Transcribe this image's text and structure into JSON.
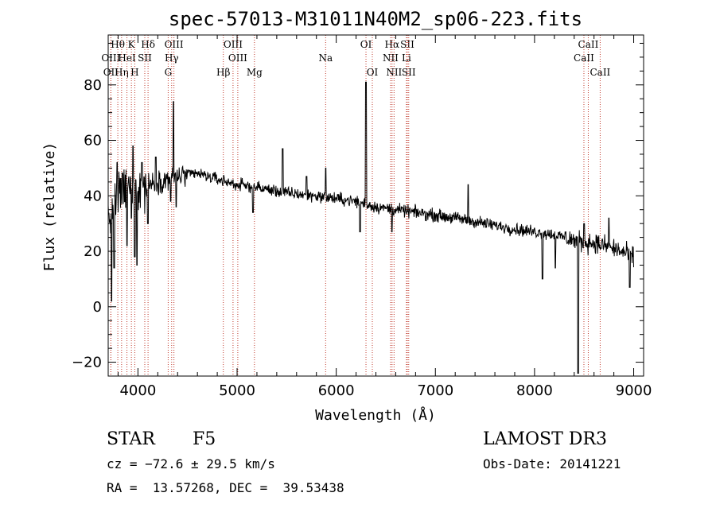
{
  "chart_data": {
    "type": "line",
    "title": "spec-57013-M31011N40M2_sp06-223.fits",
    "xlabel": "Wavelength (Å)",
    "ylabel": "Flux (relative)",
    "xlim": [
      3700,
      9100
    ],
    "ylim": [
      -25,
      98
    ],
    "x_ticks": [
      4000,
      5000,
      6000,
      7000,
      8000,
      9000
    ],
    "y_ticks": [
      -20,
      0,
      20,
      40,
      60,
      80
    ],
    "continuum": [
      [
        3700,
        32
      ],
      [
        3800,
        40
      ],
      [
        3900,
        42
      ],
      [
        4000,
        43
      ],
      [
        4100,
        44
      ],
      [
        4200,
        45
      ],
      [
        4300,
        46
      ],
      [
        4400,
        47
      ],
      [
        4600,
        48
      ],
      [
        4800,
        46
      ],
      [
        5000,
        44
      ],
      [
        5200,
        43
      ],
      [
        5500,
        41
      ],
      [
        5800,
        40
      ],
      [
        6000,
        39
      ],
      [
        6200,
        38
      ],
      [
        6400,
        36
      ],
      [
        6600,
        35
      ],
      [
        6800,
        34
      ],
      [
        7000,
        33
      ],
      [
        7200,
        32
      ],
      [
        7500,
        30
      ],
      [
        7800,
        28
      ],
      [
        8000,
        27
      ],
      [
        8200,
        26
      ],
      [
        8400,
        24
      ],
      [
        8600,
        23
      ],
      [
        8800,
        21
      ],
      [
        9000,
        18
      ]
    ],
    "features": [
      {
        "x": 3735,
        "y": 2
      },
      {
        "x": 3760,
        "y": 14
      },
      {
        "x": 3790,
        "y": 52
      },
      {
        "x": 3845,
        "y": 48
      },
      {
        "x": 3890,
        "y": 22
      },
      {
        "x": 3934,
        "y": 32
      },
      {
        "x": 3950,
        "y": 58
      },
      {
        "x": 3968,
        "y": 18
      },
      {
        "x": 3990,
        "y": 15
      },
      {
        "x": 4040,
        "y": 52
      },
      {
        "x": 4100,
        "y": 30
      },
      {
        "x": 4180,
        "y": 54
      },
      {
        "x": 4330,
        "y": 38
      },
      {
        "x": 4358,
        "y": 74
      },
      {
        "x": 4385,
        "y": 36
      },
      {
        "x": 5160,
        "y": 34
      },
      {
        "x": 5460,
        "y": 57
      },
      {
        "x": 5700,
        "y": 47
      },
      {
        "x": 5895,
        "y": 50
      },
      {
        "x": 6240,
        "y": 27
      },
      {
        "x": 6300,
        "y": 81
      },
      {
        "x": 6563,
        "y": 27
      },
      {
        "x": 7330,
        "y": 44
      },
      {
        "x": 7630,
        "y": 28
      },
      {
        "x": 8080,
        "y": 10
      },
      {
        "x": 8210,
        "y": 14
      },
      {
        "x": 8440,
        "y": -24
      },
      {
        "x": 8500,
        "y": 30
      },
      {
        "x": 8750,
        "y": 32
      },
      {
        "x": 8960,
        "y": 7
      }
    ],
    "lines": [
      {
        "label": "OII",
        "wavelength": 3727,
        "row": 2
      },
      {
        "label": "Hθ",
        "wavelength": 3797,
        "row": 0
      },
      {
        "label": "OIII",
        "wavelength": 3727,
        "row": 1
      },
      {
        "label": "Hη",
        "wavelength": 3835,
        "row": 2
      },
      {
        "label": "HeI",
        "wavelength": 3889,
        "row": 1
      },
      {
        "label": "K",
        "wavelength": 3934,
        "row": 0
      },
      {
        "label": "SII",
        "wavelength": 4069,
        "row": 1
      },
      {
        "label": "H",
        "wavelength": 3968,
        "row": 2
      },
      {
        "label": "Hδ",
        "wavelength": 4102,
        "row": 0
      },
      {
        "label": "OIII",
        "wavelength": 4363,
        "row": 0
      },
      {
        "label": "Hγ",
        "wavelength": 4340,
        "row": 1
      },
      {
        "label": "G",
        "wavelength": 4305,
        "row": 2
      },
      {
        "label": "Hβ",
        "wavelength": 4861,
        "row": 2
      },
      {
        "label": "OIII",
        "wavelength": 4959,
        "row": 0
      },
      {
        "label": "OIII",
        "wavelength": 5007,
        "row": 1
      },
      {
        "label": "Mg",
        "wavelength": 5175,
        "row": 2
      },
      {
        "label": "Na",
        "wavelength": 5893,
        "row": 1
      },
      {
        "label": "OI",
        "wavelength": 6300,
        "row": 0
      },
      {
        "label": "OI",
        "wavelength": 6364,
        "row": 2
      },
      {
        "label": "Hα",
        "wavelength": 6563,
        "row": 0
      },
      {
        "label": "NII",
        "wavelength": 6548,
        "row": 1
      },
      {
        "label": "NII",
        "wavelength": 6583,
        "row": 2
      },
      {
        "label": "SII",
        "wavelength": 6717,
        "row": 0
      },
      {
        "label": "Li",
        "wavelength": 6708,
        "row": 1
      },
      {
        "label": "SII",
        "wavelength": 6731,
        "row": 2
      },
      {
        "label": "CaII",
        "wavelength": 8542,
        "row": 0
      },
      {
        "label": "CaII",
        "wavelength": 8498,
        "row": 1
      },
      {
        "label": "CaII",
        "wavelength": 8662,
        "row": 2
      }
    ]
  },
  "info": {
    "object_class": "STAR",
    "subclass": "F5",
    "survey": "LAMOST DR3",
    "redshift": "cz = −72.6 ± 29.5 km/s",
    "obs_date": "Obs-Date: 20141221",
    "coords": "RA =  13.57268, DEC =  39.53438"
  }
}
